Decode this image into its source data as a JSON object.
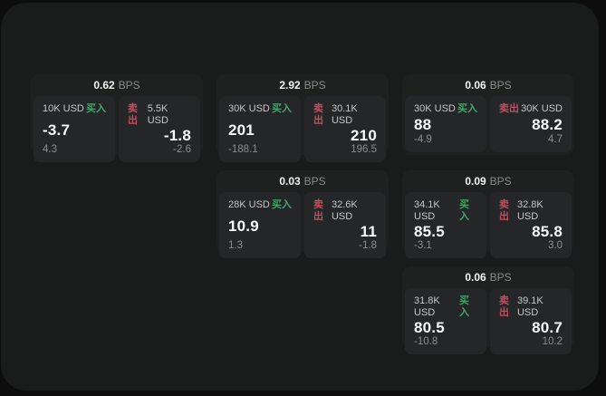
{
  "labels": {
    "bps_unit": "BPS",
    "buy": "买入",
    "sell": "卖出"
  },
  "colors": {
    "buy_green": "#43a56c",
    "sell_red": "#c04f5e",
    "panel_bg": "#1a1b1b",
    "card_bg": "#1f2020",
    "subpanel_bg": "#252628",
    "page_bg": "#0d0d0d"
  },
  "cards": [
    {
      "bps": "0.62",
      "buy": {
        "notional": "10K USD",
        "price": "-3.7",
        "delta": "4.3"
      },
      "sell": {
        "notional": "5.5K USD",
        "price": "-1.8",
        "delta": "-2.6"
      }
    },
    {
      "bps": "2.92",
      "buy": {
        "notional": "30K USD",
        "price": "201",
        "delta": "-188.1"
      },
      "sell": {
        "notional": "30.1K USD",
        "price": "210",
        "delta": "196.5"
      }
    },
    {
      "bps": "0.06",
      "buy": {
        "notional": "30K USD",
        "price": "88",
        "delta": "-4.9"
      },
      "sell": {
        "notional": "30K USD",
        "price": "88.2",
        "delta": "4.7"
      }
    },
    {
      "bps": "0.03",
      "buy": {
        "notional": "28K USD",
        "price": "10.9",
        "delta": "1.3"
      },
      "sell": {
        "notional": "32.6K USD",
        "price": "11",
        "delta": "-1.8"
      }
    },
    {
      "bps": "0.09",
      "buy": {
        "notional": "34.1K USD",
        "price": "85.5",
        "delta": "-3.1"
      },
      "sell": {
        "notional": "32.8K USD",
        "price": "85.8",
        "delta": "3.0"
      }
    },
    {
      "bps": "0.06",
      "buy": {
        "notional": "31.8K USD",
        "price": "80.5",
        "delta": "-10.8"
      },
      "sell": {
        "notional": "39.1K USD",
        "price": "80.7",
        "delta": "10.2"
      }
    }
  ]
}
